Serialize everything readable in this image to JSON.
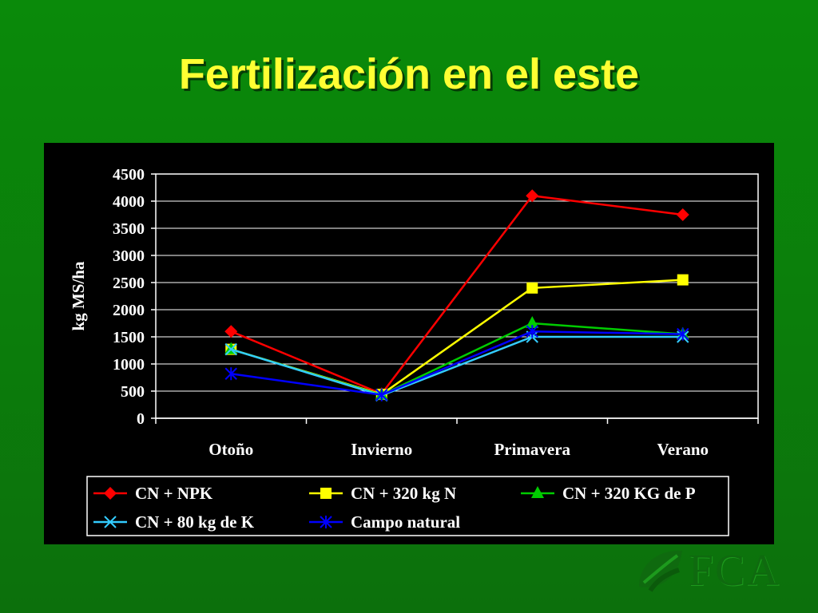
{
  "slide": {
    "title": "Fertilización en el este",
    "logo_text": "FCA"
  },
  "chart_data": {
    "type": "line",
    "title": "",
    "xlabel": "",
    "ylabel": "kg MS/ha",
    "ylim": [
      0,
      4500
    ],
    "yticks": [
      0,
      500,
      1000,
      1500,
      2000,
      2500,
      3000,
      3500,
      4000,
      4500
    ],
    "grid": true,
    "legend_position": "bottom",
    "categories": [
      "Otoño",
      "Invierno",
      "Primavera",
      "Verano"
    ],
    "series": [
      {
        "name": "CN + NPK",
        "values": [
          1600,
          450,
          4100,
          3750
        ],
        "color": "#ff0000",
        "marker": "diamond"
      },
      {
        "name": "CN + 320 kg N",
        "values": [
          1270,
          440,
          2400,
          2550
        ],
        "color": "#ffff00",
        "marker": "square"
      },
      {
        "name": "CN + 320 KG de P",
        "values": [
          1270,
          430,
          1750,
          1550
        ],
        "color": "#00cc00",
        "marker": "triangle"
      },
      {
        "name": "CN + 80 kg de K",
        "values": [
          1270,
          420,
          1500,
          1500
        ],
        "color": "#33ccff",
        "marker": "x"
      },
      {
        "name": "Campo natural",
        "values": [
          820,
          430,
          1600,
          1550
        ],
        "color": "#0000ff",
        "marker": "star"
      }
    ]
  }
}
